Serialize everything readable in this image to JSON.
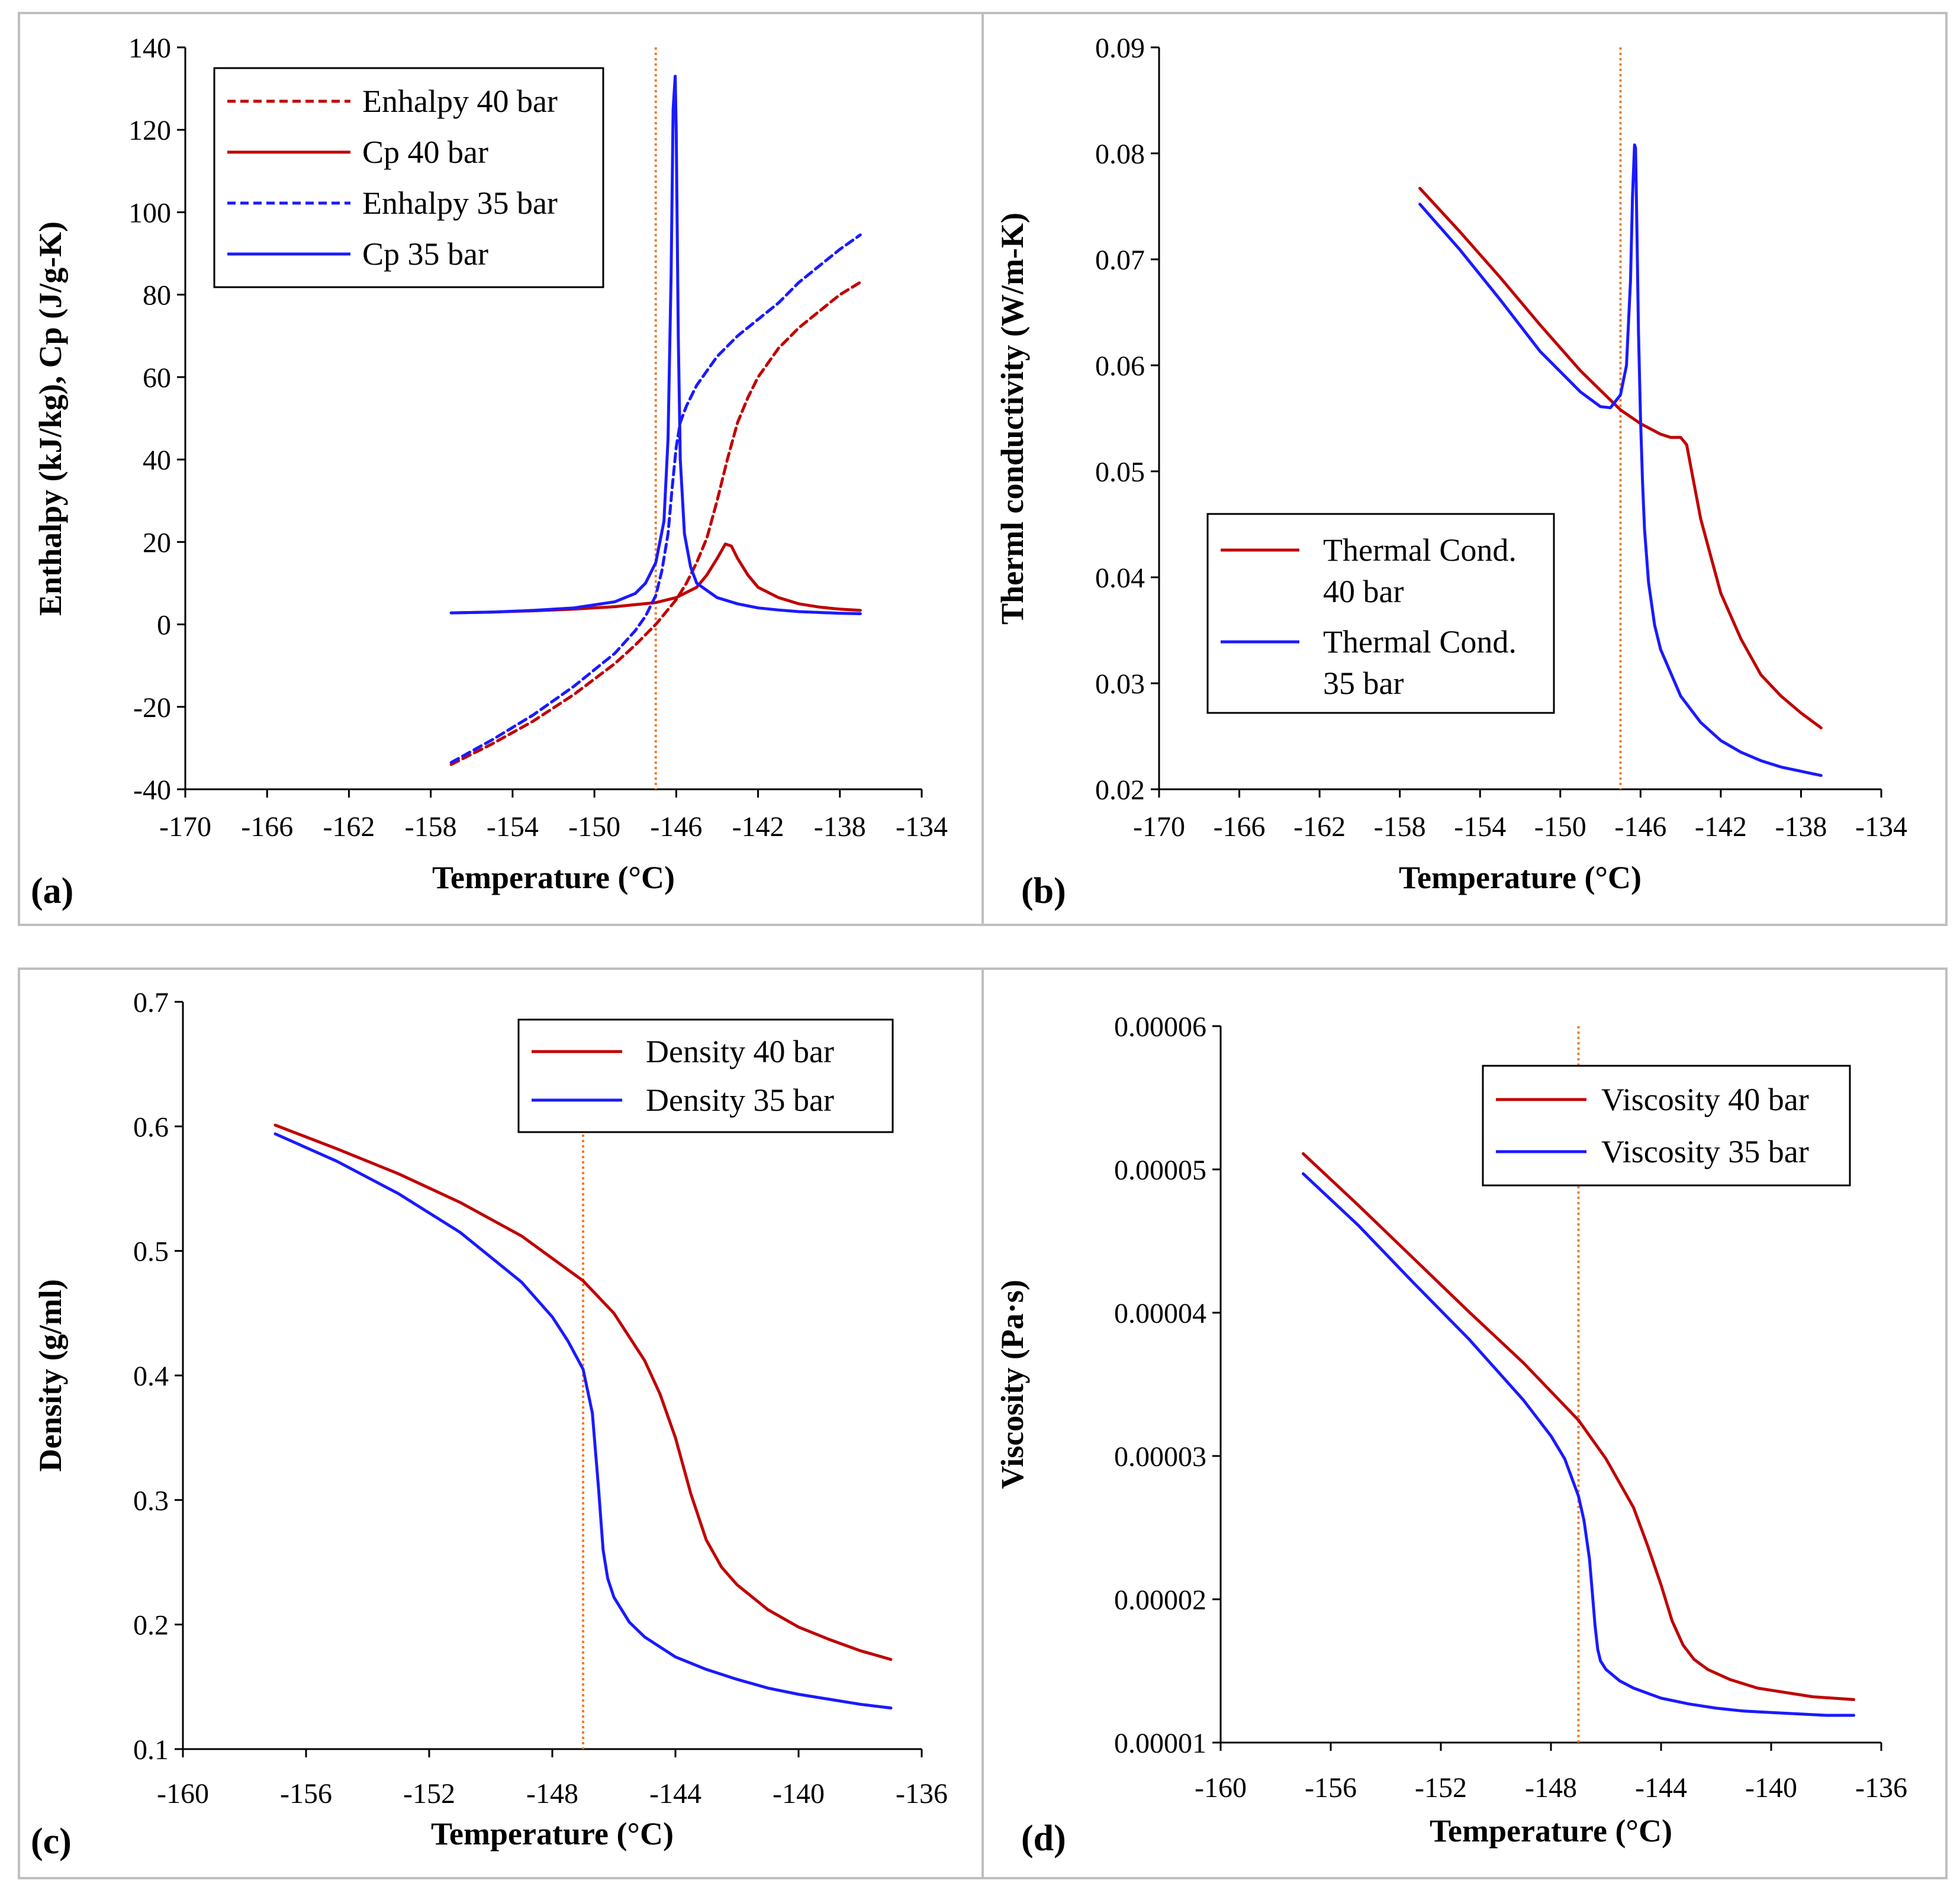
{
  "colors": {
    "red": "#c00000",
    "blue": "#1a1aff",
    "orange": "#ed7d31",
    "frame": "#bfbfbf",
    "axis": "#000000"
  },
  "chart_data": [
    {
      "id": "a",
      "type": "line",
      "panel_label": "(a)",
      "xlabel": "Temperature (°C)",
      "ylabel": "Enthalpy (kJ/kg), Cp (J/g-K)",
      "xlim": [
        -170,
        -134
      ],
      "ylim": [
        -40,
        140
      ],
      "xticks": [
        -170,
        -166,
        -162,
        -158,
        -154,
        -150,
        -146,
        -142,
        -138,
        -134
      ],
      "yticks": [
        -40,
        -20,
        0,
        20,
        40,
        60,
        80,
        100,
        120,
        140
      ],
      "tick_labels_x": [
        "-170",
        "-166",
        "-162",
        "-158",
        "-154",
        "-150",
        "-146",
        "-142",
        "-138",
        "-134"
      ],
      "tick_labels_y": [
        "-40",
        "-20",
        "0",
        "20",
        "40",
        "60",
        "80",
        "100",
        "120",
        "140"
      ],
      "vline": -147,
      "legend_position": "top-left",
      "series": [
        {
          "name": "Enhalpy 40 bar",
          "color": "red",
          "dash": true,
          "x": [
            -157,
            -155,
            -153,
            -151,
            -149,
            -148,
            -147,
            -146,
            -145.5,
            -145,
            -144.5,
            -144,
            -143.5,
            -143,
            -142.5,
            -142,
            -141,
            -140,
            -139,
            -138,
            -137
          ],
          "y": [
            -34,
            -29,
            -23.5,
            -17,
            -9.5,
            -5,
            0,
            6,
            10,
            15,
            21,
            30,
            40,
            49,
            55,
            60,
            67,
            72,
            76,
            80,
            83
          ]
        },
        {
          "name": "Cp 40 bar",
          "color": "red",
          "dash": false,
          "x": [
            -157,
            -155,
            -153,
            -151,
            -149,
            -147,
            -146,
            -145,
            -144.5,
            -144,
            -143.6,
            -143.3,
            -143,
            -142.5,
            -142,
            -141,
            -140,
            -139,
            -138,
            -137
          ],
          "y": [
            2.8,
            3,
            3.3,
            3.7,
            4.3,
            5.3,
            6.5,
            9,
            12,
            16,
            19.5,
            19,
            16,
            12,
            9,
            6.5,
            5,
            4.2,
            3.7,
            3.4
          ]
        },
        {
          "name": "Enhalpy 35 bar",
          "color": "blue",
          "dash": true,
          "x": [
            -157,
            -155,
            -153,
            -151,
            -149,
            -148,
            -147.5,
            -147,
            -146.7,
            -146.4,
            -146.2,
            -146,
            -145.8,
            -145.5,
            -145,
            -144,
            -143,
            -142,
            -141,
            -140,
            -139,
            -138,
            -137
          ],
          "y": [
            -33.5,
            -28,
            -22,
            -15,
            -7,
            -1.5,
            2,
            7,
            13,
            22,
            33,
            43,
            49,
            53,
            58,
            65,
            70,
            74,
            78,
            83,
            87,
            91,
            94.5
          ]
        },
        {
          "name": "Cp 35 bar",
          "color": "blue",
          "dash": false,
          "x": [
            -157,
            -155,
            -153,
            -151,
            -149,
            -148,
            -147.5,
            -147,
            -146.6,
            -146.4,
            -146.25,
            -146.15,
            -146.05,
            -146,
            -145.9,
            -145.8,
            -145.6,
            -145.3,
            -145,
            -144,
            -143,
            -142,
            -141,
            -140,
            -139,
            -138,
            -137
          ],
          "y": [
            2.8,
            3,
            3.4,
            4,
            5.5,
            7.5,
            10,
            15,
            25,
            45,
            85,
            125,
            133,
            120,
            70,
            40,
            22,
            14,
            10,
            6.5,
            5,
            4,
            3.5,
            3.1,
            2.9,
            2.7,
            2.6
          ]
        }
      ]
    },
    {
      "id": "b",
      "type": "line",
      "panel_label": "(b)",
      "xlabel": "Temperature (°C)",
      "ylabel": "Therml conductivity (W/m-K)",
      "xlim": [
        -170,
        -134
      ],
      "ylim": [
        0.02,
        0.09
      ],
      "xticks": [
        -170,
        -166,
        -162,
        -158,
        -154,
        -150,
        -146,
        -142,
        -138,
        -134
      ],
      "yticks": [
        0.02,
        0.03,
        0.04,
        0.05,
        0.06,
        0.07,
        0.08,
        0.09
      ],
      "tick_labels_x": [
        "-170",
        "-166",
        "-162",
        "-158",
        "-154",
        "-150",
        "-146",
        "-142",
        "-138",
        "-134"
      ],
      "tick_labels_y": [
        "0.02",
        "0.03",
        "0.04",
        "0.05",
        "0.06",
        "0.07",
        "0.08",
        "0.09"
      ],
      "vline": -147,
      "legend_position": "center-left",
      "series": [
        {
          "name_lines": [
            "Thermal Cond.",
            "40 bar"
          ],
          "color": "red",
          "dash": false,
          "x": [
            -157,
            -155,
            -153,
            -151,
            -149,
            -147,
            -146,
            -145,
            -144.5,
            -144,
            -143.7,
            -143.4,
            -143,
            -142.5,
            -142,
            -141,
            -140,
            -139,
            -138,
            -137
          ],
          "y": [
            0.0767,
            0.0726,
            0.0683,
            0.0638,
            0.0595,
            0.0558,
            0.0545,
            0.0535,
            0.0532,
            0.0532,
            0.0525,
            0.0495,
            0.0455,
            0.042,
            0.0385,
            0.0342,
            0.0308,
            0.0288,
            0.0272,
            0.0258
          ]
        },
        {
          "name_lines": [
            "Thermal Cond.",
            "35 bar"
          ],
          "color": "blue",
          "dash": false,
          "x": [
            -157,
            -155,
            -153,
            -151,
            -149,
            -148,
            -147.5,
            -147,
            -146.7,
            -146.5,
            -146.4,
            -146.3,
            -146.25,
            -146.2,
            -146.1,
            -146,
            -145.9,
            -145.8,
            -145.6,
            -145.3,
            -145,
            -144,
            -143,
            -142,
            -141,
            -140,
            -139,
            -138,
            -137
          ],
          "y": [
            0.0752,
            0.0709,
            0.0662,
            0.0613,
            0.0575,
            0.0561,
            0.056,
            0.0572,
            0.06,
            0.068,
            0.076,
            0.0808,
            0.0805,
            0.075,
            0.063,
            0.055,
            0.049,
            0.0445,
            0.0395,
            0.0355,
            0.0332,
            0.0288,
            0.0263,
            0.0246,
            0.0235,
            0.0227,
            0.0221,
            0.0217,
            0.0213
          ]
        }
      ]
    },
    {
      "id": "c",
      "type": "line",
      "panel_label": "(c)",
      "xlabel": "Temperature (°C)",
      "ylabel": "Density (g/ml)",
      "xlim": [
        -160,
        -136
      ],
      "ylim": [
        0.1,
        0.7
      ],
      "xticks": [
        -160,
        -156,
        -152,
        -148,
        -144,
        -140,
        -136
      ],
      "yticks": [
        0.1,
        0.2,
        0.3,
        0.4,
        0.5,
        0.6,
        0.7
      ],
      "tick_labels_x": [
        "-160",
        "-156",
        "-152",
        "-148",
        "-144",
        "-140",
        "-136"
      ],
      "tick_labels_y": [
        "0.1",
        "0.2",
        "0.3",
        "0.4",
        "0.5",
        "0.6",
        "0.7"
      ],
      "vline": -147,
      "legend_position": "top-right",
      "series": [
        {
          "name": "Density 40 bar",
          "color": "red",
          "dash": false,
          "x": [
            -157,
            -155,
            -153,
            -151,
            -149,
            -147,
            -146,
            -145,
            -144.5,
            -144,
            -143.5,
            -143,
            -142.5,
            -142,
            -141,
            -140,
            -139,
            -138,
            -137
          ],
          "y": [
            0.601,
            0.582,
            0.562,
            0.539,
            0.512,
            0.476,
            0.45,
            0.412,
            0.385,
            0.35,
            0.305,
            0.268,
            0.246,
            0.232,
            0.212,
            0.198,
            0.188,
            0.179,
            0.172
          ]
        },
        {
          "name": "Density 35 bar",
          "color": "blue",
          "dash": false,
          "x": [
            -157,
            -155,
            -153,
            -151,
            -149,
            -148,
            -147.5,
            -147,
            -146.7,
            -146.5,
            -146.35,
            -146.2,
            -146,
            -145.5,
            -145,
            -144,
            -143,
            -142,
            -141,
            -140,
            -139,
            -138,
            -137
          ],
          "y": [
            0.594,
            0.572,
            0.546,
            0.515,
            0.475,
            0.447,
            0.428,
            0.405,
            0.37,
            0.31,
            0.26,
            0.237,
            0.222,
            0.202,
            0.19,
            0.174,
            0.164,
            0.156,
            0.149,
            0.144,
            0.14,
            0.136,
            0.133
          ]
        }
      ]
    },
    {
      "id": "d",
      "type": "line",
      "panel_label": "(d)",
      "xlabel": "Temperature (°C)",
      "ylabel": "Viscosity (Pa·s)",
      "xlim": [
        -160,
        -136
      ],
      "ylim": [
        1e-05,
        6e-05
      ],
      "xticks": [
        -160,
        -156,
        -152,
        -148,
        -144,
        -140,
        -136
      ],
      "yticks": [
        1e-05,
        2e-05,
        3e-05,
        4e-05,
        5e-05,
        6e-05
      ],
      "tick_labels_x": [
        "-160",
        "-156",
        "-152",
        "-148",
        "-144",
        "-140",
        "-136"
      ],
      "tick_labels_y": [
        "0.00001",
        "0.00002",
        "0.00003",
        "0.00004",
        "0.00005",
        "0.00006"
      ],
      "vline": -147,
      "legend_position": "top-right",
      "series": [
        {
          "name": "Viscosity 40 bar",
          "color": "red",
          "dash": false,
          "x": [
            -157,
            -155,
            -153,
            -151,
            -149,
            -147,
            -146,
            -145,
            -144.5,
            -144,
            -143.6,
            -143.2,
            -142.8,
            -142.3,
            -141.5,
            -140.5,
            -139.5,
            -138.5,
            -137
          ],
          "y": [
            5.11e-05,
            4.75e-05,
            4.38e-05,
            4.01e-05,
            3.65e-05,
            3.25e-05,
            2.98e-05,
            2.64e-05,
            2.38e-05,
            2.1e-05,
            1.85e-05,
            1.68e-05,
            1.58e-05,
            1.51e-05,
            1.44e-05,
            1.38e-05,
            1.35e-05,
            1.32e-05,
            1.3e-05
          ]
        },
        {
          "name": "Viscosity 35 bar",
          "color": "blue",
          "dash": false,
          "x": [
            -157,
            -155,
            -153,
            -151,
            -149,
            -148,
            -147.5,
            -147,
            -146.8,
            -146.6,
            -146.5,
            -146.4,
            -146.3,
            -146.2,
            -146,
            -145.5,
            -145,
            -144,
            -143,
            -142,
            -141,
            -140,
            -139,
            -138,
            -137
          ],
          "y": [
            4.97e-05,
            4.61e-05,
            4.21e-05,
            3.82e-05,
            3.39e-05,
            3.14e-05,
            2.98e-05,
            2.72e-05,
            2.55e-05,
            2.28e-05,
            2.05e-05,
            1.82e-05,
            1.65e-05,
            1.57e-05,
            1.51e-05,
            1.43e-05,
            1.38e-05,
            1.31e-05,
            1.27e-05,
            1.24e-05,
            1.22e-05,
            1.21e-05,
            1.2e-05,
            1.19e-05,
            1.19e-05
          ]
        }
      ]
    }
  ]
}
